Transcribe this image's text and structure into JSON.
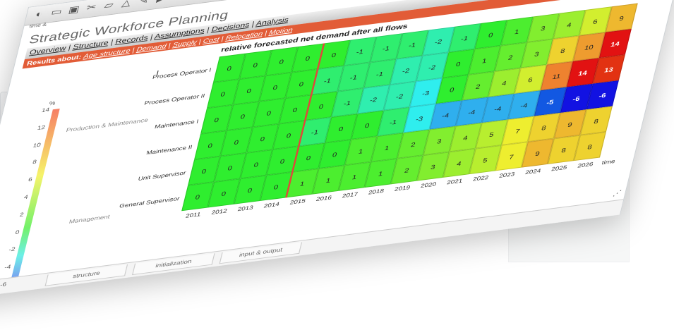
{
  "toolbar": {
    "icons": [
      "palette-icon",
      "folder-icon",
      "save-icon",
      "cut-icon",
      "eraser-icon",
      "shapes-icon",
      "pen-icon",
      "run-icon"
    ],
    "subhead": "time  &",
    "close": "×"
  },
  "app": {
    "title": "Strategic Workforce Planning"
  },
  "nav": {
    "main": [
      "Overview",
      "Structure",
      "Records",
      "Assumptions",
      "Decisions",
      "Analysis"
    ],
    "results_label": "Results about:",
    "results": [
      "Age structure",
      "Demand",
      "Supply",
      "Cost",
      "Relocation",
      "Motion"
    ]
  },
  "chart_data": {
    "type": "heatmap",
    "title": "relative forecasted net demand after all flows",
    "xlabel": "time",
    "x": [
      2011,
      2012,
      2013,
      2014,
      2015,
      2016,
      2017,
      2018,
      2019,
      2020,
      2021,
      2022,
      2023,
      2024,
      2025,
      2026
    ],
    "rows": [
      "Process Operator I",
      "Process Operator II",
      "Maintenance I",
      "Maintenance II",
      "Unit Supervisor",
      "General Supervisor"
    ],
    "groups": [
      "Production & Maintenance",
      "Management"
    ],
    "legend_unit": "%",
    "legend_ticks": [
      14,
      12,
      10,
      8,
      6,
      4,
      2,
      0,
      -2,
      -4,
      -6
    ],
    "values": [
      [
        0,
        0,
        0,
        0,
        0,
        -1,
        -1,
        -1,
        -2,
        -1,
        0,
        1,
        3,
        4,
        6,
        9
      ],
      [
        0,
        0,
        0,
        0,
        -1,
        -1,
        -1,
        -2,
        -2,
        0,
        1,
        2,
        3,
        8,
        10,
        14
      ],
      [
        0,
        0,
        0,
        0,
        0,
        -1,
        -2,
        -2,
        -3,
        0,
        2,
        4,
        6,
        11,
        14,
        13
      ],
      [
        0,
        0,
        0,
        0,
        -1,
        0,
        0,
        -1,
        -3,
        -4,
        -4,
        -4,
        -4,
        -5,
        -6,
        -6
      ],
      [
        0,
        0,
        0,
        0,
        0,
        0,
        1,
        1,
        2,
        3,
        4,
        5,
        7,
        8,
        9,
        8
      ],
      [
        0,
        0,
        0,
        0,
        1,
        1,
        1,
        1,
        2,
        3,
        4,
        5,
        7,
        9,
        8,
        8
      ]
    ],
    "highlight_year": 2014
  },
  "bottom_tabs": [
    "structure",
    "initialization",
    "input & output"
  ]
}
